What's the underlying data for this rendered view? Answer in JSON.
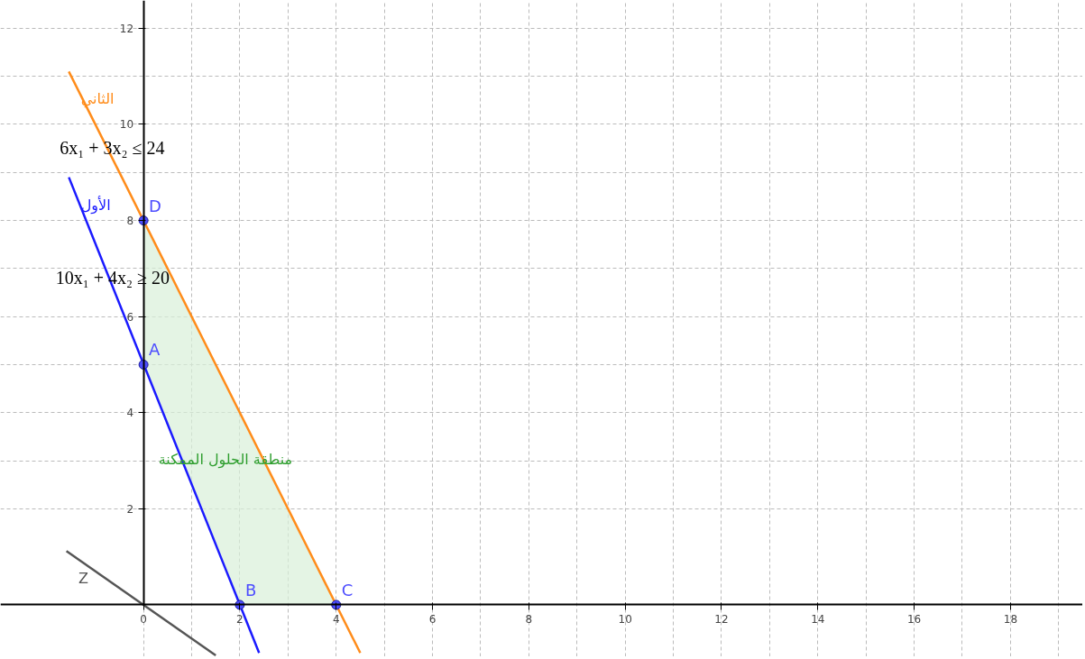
{
  "chart_data": {
    "type": "line",
    "xlim": [
      -2.97,
      19.5
    ],
    "ylim": [
      -1.08,
      12.58
    ],
    "xticks": [
      0,
      2,
      4,
      6,
      8,
      10,
      12,
      14,
      16,
      18
    ],
    "yticks": [
      2,
      4,
      6,
      8,
      10,
      12
    ],
    "grid": true,
    "series": [
      {
        "type": "area",
        "name": "منطقة الحلول الممكنة",
        "color": "#d9efd9",
        "x": [
          0,
          0,
          4,
          2
        ],
        "values": [
          5,
          8,
          0,
          0
        ]
      },
      {
        "name": "الثاني",
        "color": "#ff8c1a",
        "x": [
          -1.55,
          4.5
        ],
        "values": [
          11.1,
          -1
        ]
      },
      {
        "name": "الأول",
        "color": "#1a1aff",
        "x": [
          -1.55,
          2.4
        ],
        "values": [
          8.9,
          -1
        ]
      },
      {
        "name": "Z",
        "color": "#555555",
        "x": [
          -1.6,
          1.5
        ],
        "values": [
          1.12,
          -1.05
        ]
      },
      {
        "type": "scatter",
        "name": "A",
        "color": "#4d4dff",
        "x": [
          0
        ],
        "values": [
          5
        ]
      },
      {
        "type": "scatter",
        "name": "B",
        "color": "#4d4dff",
        "x": [
          2
        ],
        "values": [
          0
        ]
      },
      {
        "type": "scatter",
        "name": "C",
        "color": "#4d4dff",
        "x": [
          4
        ],
        "values": [
          0
        ]
      },
      {
        "type": "scatter",
        "name": "D",
        "color": "#4d4dff",
        "x": [
          0
        ],
        "values": [
          8
        ]
      }
    ],
    "annotations": [
      {
        "text": "6x₁ + 3x₂ ≤ 24",
        "x": -0.65,
        "y": 9.3
      },
      {
        "text": "10x₁ + 4x₂ ≥ 20",
        "x": -0.64,
        "y": 6.6
      }
    ]
  }
}
